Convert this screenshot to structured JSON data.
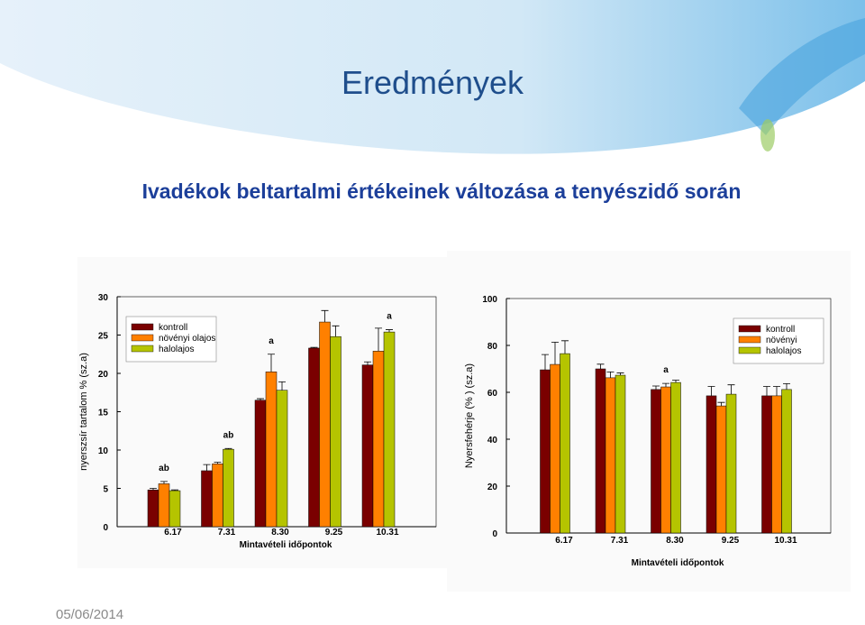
{
  "title": "Eredmények",
  "subtitle": "Ivadékok beltartalmi értékeinek változása a tenyészidő során",
  "date": "05/06/2014",
  "chart_data": [
    {
      "type": "bar",
      "ylabel": "nyerszsír tartalom % (sz.a)",
      "xlabel": "Mintavételi időpontok",
      "categories": [
        "6.17",
        "7.31",
        "8.30",
        "9.25",
        "10.31"
      ],
      "series": [
        {
          "name": "kontroll",
          "color": "#7a0000",
          "values": [
            4.8,
            7.3,
            16.5,
            23.3,
            21.1
          ],
          "errors": [
            0.2,
            0.8,
            0.2,
            0.1,
            0.4
          ]
        },
        {
          "name": "növényi olajos",
          "color": "#ff8000",
          "values": [
            5.6,
            8.2,
            20.2,
            26.7,
            22.9
          ],
          "errors": [
            0.3,
            0.2,
            2.3,
            1.5,
            3.0
          ]
        },
        {
          "name": "halolajos",
          "color": "#b5c400",
          "values": [
            4.7,
            10.1,
            17.8,
            24.8,
            25.4
          ],
          "errors": [
            0.1,
            0.1,
            1.1,
            1.4,
            0.3
          ]
        }
      ],
      "annotations": [
        "ab",
        "ab",
        "a",
        "a"
      ],
      "ylim": [
        0,
        30
      ],
      "yticks": [
        0,
        5,
        10,
        15,
        20,
        25,
        30
      ],
      "legend": "upper left"
    },
    {
      "type": "bar",
      "ylabel": "Nyersfehérje (% ) (sz.a)",
      "xlabel": "Mintavételi időpontok",
      "categories": [
        "6.17",
        "7.31",
        "8.30",
        "9.25",
        "10.31"
      ],
      "series": [
        {
          "name": "kontroll",
          "color": "#7a0000",
          "values": [
            69.6,
            70,
            61.2,
            58.5,
            58.5
          ],
          "errors": [
            6.5,
            2,
            1.5,
            4,
            4
          ]
        },
        {
          "name": "növényi",
          "color": "#ff8000",
          "values": [
            71.9,
            66.2,
            62.3,
            54.2,
            58.5
          ],
          "errors": [
            9.5,
            2.5,
            1.5,
            1.5,
            4
          ]
        },
        {
          "name": "halolajos",
          "color": "#b5c400",
          "values": [
            76.5,
            67.3,
            64.2,
            59.2,
            61.2
          ],
          "errors": [
            5.5,
            1,
            1,
            4,
            2.5
          ]
        }
      ],
      "annotations": [
        "a"
      ],
      "ylim": [
        0,
        100
      ],
      "yticks": [
        0,
        20,
        40,
        60,
        80,
        100
      ],
      "legend": "upper right"
    }
  ]
}
